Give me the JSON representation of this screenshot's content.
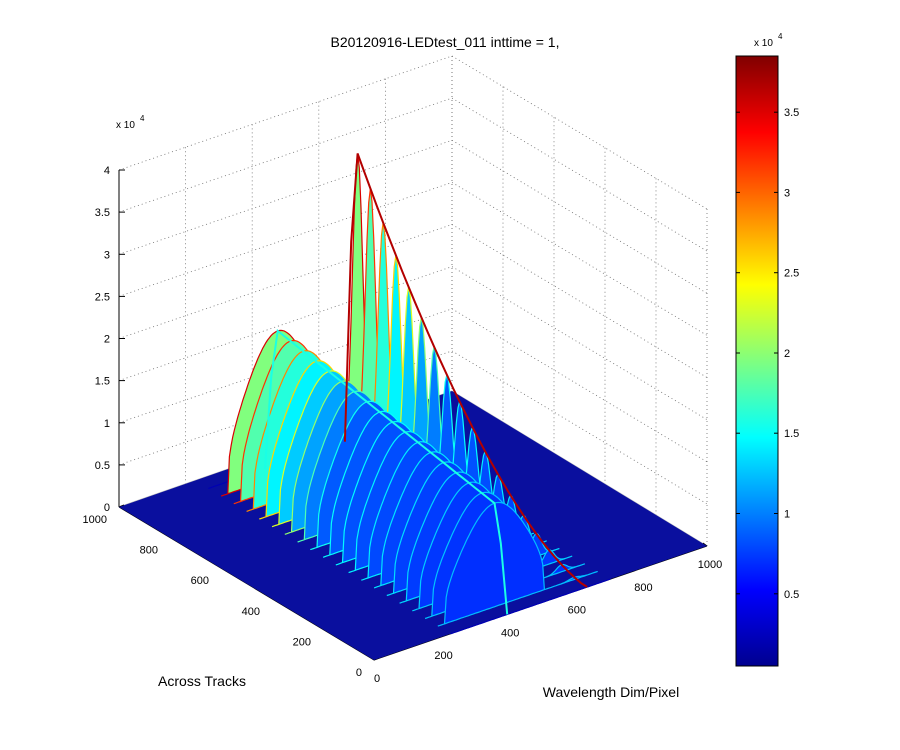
{
  "chart_data": {
    "type": "surface",
    "title": "B20120916-LEDtest_011 inttime = 1,",
    "xlabel": "Wavelength Dim/Pixel",
    "ylabel": "Across Tracks",
    "zlabel": "",
    "x_range": [
      0,
      1000
    ],
    "y_range": [
      0,
      1000
    ],
    "zlim": [
      0,
      40000
    ],
    "x_ticks": [
      "0",
      "200",
      "400",
      "600",
      "800",
      "1000"
    ],
    "y_ticks": [
      "0",
      "200",
      "400",
      "600",
      "800",
      "1000"
    ],
    "z_ticks": [
      "0",
      "0.5",
      "1",
      "1.5",
      "2",
      "2.5",
      "3",
      "3.5",
      "4"
    ],
    "z_exponent": {
      "base": "x 10",
      "power": "4"
    },
    "grid": "on",
    "colormap": "jet",
    "colorbar": {
      "range": [
        500,
        38500
      ],
      "tick_labels": [
        "0.5",
        "1",
        "1.5",
        "2",
        "2.5",
        "3",
        "3.5"
      ],
      "tick_values": [
        5000,
        10000,
        15000,
        20000,
        25000,
        30000,
        35000
      ],
      "exponent": {
        "base": "x 10",
        "power": "4"
      },
      "position": "right"
    },
    "surface_features": [
      {
        "name": "broad band",
        "x_span": [
          250,
          550
        ],
        "y_span": [
          0,
          950
        ],
        "peak_z": 16000
      },
      {
        "name": "sharp peak",
        "x_center": 640,
        "y_span": [
          0,
          950
        ],
        "peak_z": 38500
      }
    ],
    "series": []
  }
}
